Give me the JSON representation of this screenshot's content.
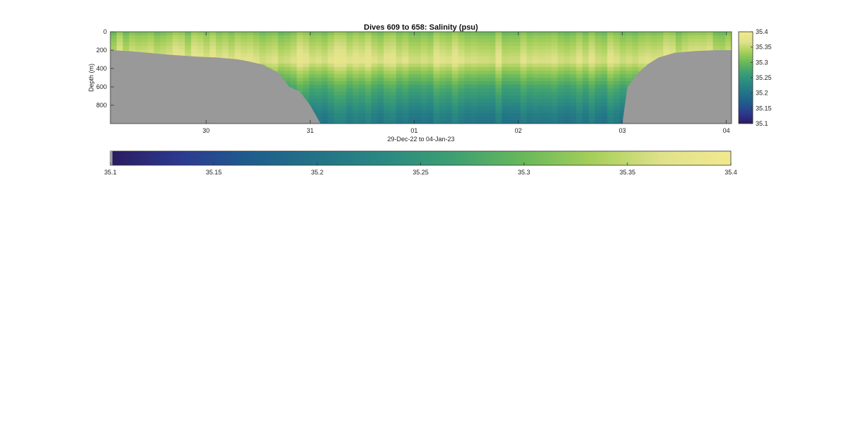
{
  "chart_data": {
    "type": "heatmap",
    "title": "Dives 609 to 658: Salinity (psu)",
    "xlabel": "29-Dec-22 to 04-Jan-23",
    "ylabel": "Depth (m)",
    "x_ticks": [
      {
        "label": "30",
        "day": 1
      },
      {
        "label": "31",
        "day": 2
      },
      {
        "label": "01",
        "day": 3
      },
      {
        "label": "02",
        "day": 4
      },
      {
        "label": "03",
        "day": 5
      },
      {
        "label": "04",
        "day": 6
      }
    ],
    "x_range_days": [
      0.08,
      6.05
    ],
    "y_ticks": [
      0,
      200,
      400,
      600,
      800
    ],
    "ylim": [
      0,
      1000
    ],
    "y_reversed": true,
    "clim": [
      35.1,
      35.4
    ],
    "colorbar_ticks": [
      "35.1",
      "35.15",
      "35.2",
      "35.25",
      "35.3",
      "35.35",
      "35.4"
    ],
    "horizontal_colorbar_ticks": [
      "35.1",
      "35.15",
      "35.2",
      "35.25",
      "35.3",
      "35.35",
      "35.4"
    ],
    "colormap": [
      "#2b1b5e",
      "#2c3990",
      "#1f5c8d",
      "#237387",
      "#2a8a82",
      "#3ea072",
      "#69b85a",
      "#a6cf5a",
      "#e0e28a",
      "#f1e98f"
    ],
    "no_data_color": "#999999",
    "salinity_profile": [
      {
        "depth": 0,
        "value": 35.31
      },
      {
        "depth": 60,
        "value": 35.33
      },
      {
        "depth": 120,
        "value": 35.34
      },
      {
        "depth": 180,
        "value": 35.35
      },
      {
        "depth": 250,
        "value": 35.36
      },
      {
        "depth": 320,
        "value": 35.37
      },
      {
        "depth": 400,
        "value": 35.34
      },
      {
        "depth": 500,
        "value": 35.31
      },
      {
        "depth": 600,
        "value": 35.28
      },
      {
        "depth": 700,
        "value": 35.26
      },
      {
        "depth": 800,
        "value": 35.24
      },
      {
        "depth": 900,
        "value": 35.22
      },
      {
        "depth": 1000,
        "value": 35.21
      }
    ],
    "max_dive_depth": [
      {
        "day": 0.08,
        "depth": 200
      },
      {
        "day": 0.25,
        "depth": 210
      },
      {
        "day": 0.45,
        "depth": 230
      },
      {
        "day": 0.65,
        "depth": 250
      },
      {
        "day": 0.9,
        "depth": 270
      },
      {
        "day": 1.1,
        "depth": 280
      },
      {
        "day": 1.3,
        "depth": 300
      },
      {
        "day": 1.4,
        "depth": 320
      },
      {
        "day": 1.55,
        "depth": 360
      },
      {
        "day": 1.7,
        "depth": 450
      },
      {
        "day": 1.8,
        "depth": 600
      },
      {
        "day": 1.9,
        "depth": 650
      },
      {
        "day": 2.0,
        "depth": 800
      },
      {
        "day": 2.1,
        "depth": 1000
      },
      {
        "day": 5.0,
        "depth": 1000
      },
      {
        "day": 5.05,
        "depth": 600
      },
      {
        "day": 5.15,
        "depth": 450
      },
      {
        "day": 5.25,
        "depth": 350
      },
      {
        "day": 5.35,
        "depth": 280
      },
      {
        "day": 5.5,
        "depth": 230
      },
      {
        "day": 5.7,
        "depth": 210
      },
      {
        "day": 5.9,
        "depth": 200
      },
      {
        "day": 6.05,
        "depth": 200
      }
    ]
  }
}
